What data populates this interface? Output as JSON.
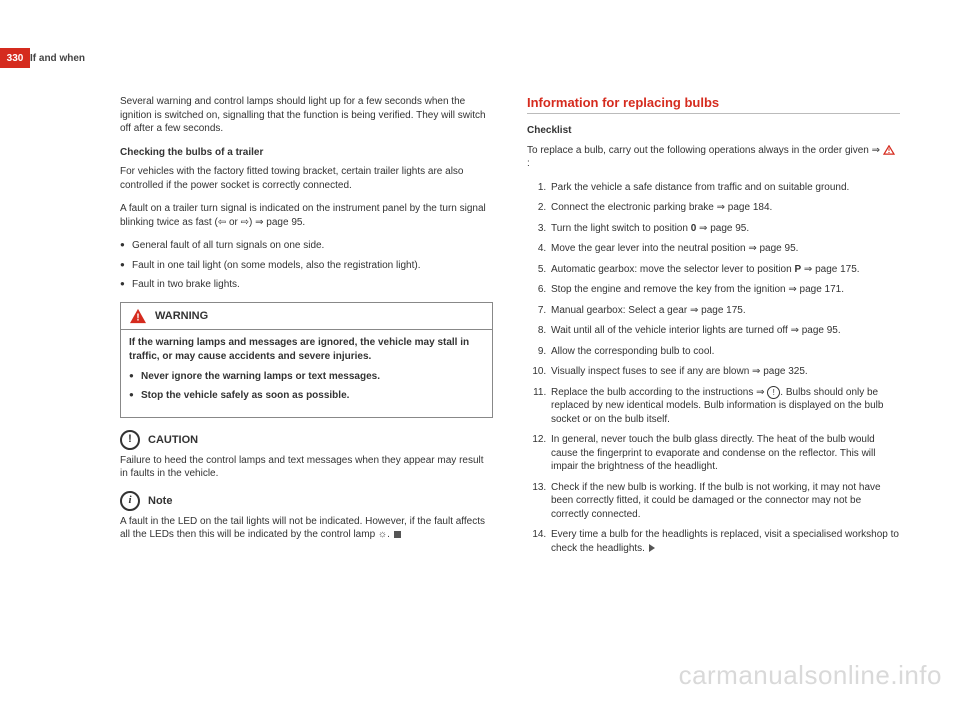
{
  "page_number": "330",
  "header": "If and when",
  "left": {
    "intro": "Several warning and control lamps should light up for a few seconds when the ignition is switched on, signalling that the function is being verified. They will switch off after a few seconds.",
    "sub1_title": "Checking the bulbs of a trailer",
    "sub1_p1": "For vehicles with the factory fitted towing bracket, certain trailer lights are also controlled if the power socket is correctly connected.",
    "sub1_p2": "A fault on a trailer turn signal is indicated on the instrument panel by the turn signal blinking twice as fast (⇦ or ⇨)  ⇒ page 95.",
    "faults": [
      "General fault of all turn signals on one side.",
      "Fault in one tail light (on some models, also the registration light).",
      "Fault in two brake lights."
    ],
    "warning_label": "WARNING",
    "warning_text": "If the warning lamps and messages are ignored, the vehicle may stall in traffic, or may cause accidents and severe injuries.",
    "warning_items": [
      "Never ignore the warning lamps or text messages.",
      "Stop the vehicle safely as soon as possible."
    ],
    "caution_label": "CAUTION",
    "caution_text": "Failure to heed the control lamps and text messages when they appear may result in faults in the vehicle.",
    "note_label": "Note",
    "note_text": "A fault in the LED on the tail lights will not be indicated. However, if the fault affects all the LEDs then this will be indicated by the control lamp ☼."
  },
  "right": {
    "section_title": "Information for replacing bulbs",
    "checklist_label": "Checklist",
    "checklist_intro_a": "To replace a bulb, carry out the following operations always in the order given ⇒ ",
    "checklist_intro_b": ":",
    "steps": [
      "Park the vehicle a safe distance from traffic and on suitable ground.",
      "Connect the electronic parking brake ⇒ page 184.",
      "Turn the light switch to position 0 ⇒ page 95.",
      "Move the gear lever into the neutral position ⇒ page 95.",
      "Automatic gearbox: move the selector lever to position P ⇒ page 175.",
      "Stop the engine and remove the key from the ignition ⇒ page 171.",
      "Manual gearbox: Select a gear ⇒ page 175.",
      "Wait until all of the vehicle interior lights are turned off ⇒ page 95.",
      "Allow the corresponding bulb to cool.",
      "Visually inspect fuses to see if any are blown ⇒ page 325.",
      "Replace the bulb according to the instructions ⇒ ⓘ. Bulbs should only be replaced by new identical models. Bulb information is displayed on the bulb socket or on the bulb itself.",
      "In general, never touch the bulb glass directly. The heat of the bulb would cause the fingerprint to evaporate and condense on the reflector. This will impair the brightness of the headlight.",
      "Check if the new bulb is working. If the bulb is not working, it may not have been correctly fitted, it could be damaged or the connector may not be correctly connected.",
      "Every time a bulb for the headlights is replaced, visit a specialised workshop to check the headlights."
    ]
  },
  "watermark": "carmanualsonline.info",
  "step3_bold": "0",
  "step5_bold": "P"
}
